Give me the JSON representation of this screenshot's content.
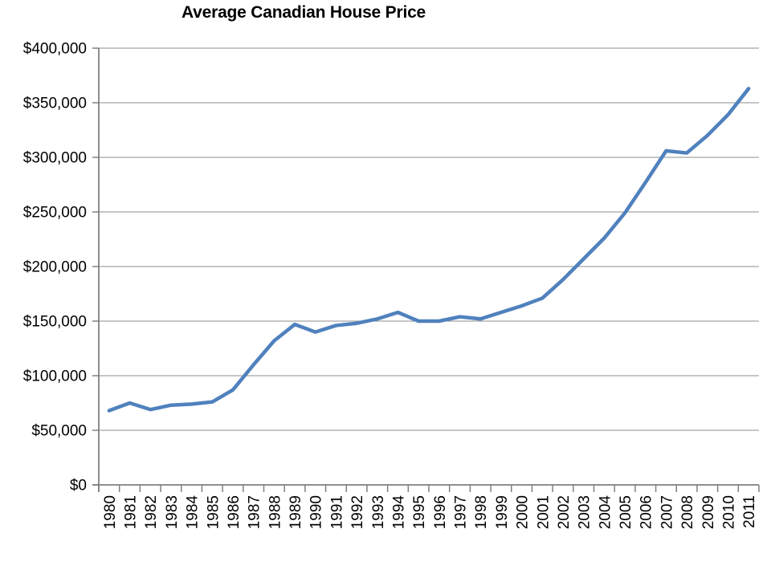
{
  "chart_data": {
    "type": "line",
    "title": "Average Canadian House Price",
    "x": [
      "1980",
      "1981",
      "1982",
      "1983",
      "1984",
      "1985",
      "1986",
      "1987",
      "1988",
      "1989",
      "1990",
      "1991",
      "1992",
      "1993",
      "1994",
      "1995",
      "1996",
      "1997",
      "1998",
      "1999",
      "2000",
      "2001",
      "2002",
      "2003",
      "2004",
      "2005",
      "2006",
      "2007",
      "2008",
      "2009",
      "2010",
      "2011"
    ],
    "series": [
      {
        "name": "Average Canadian House Price",
        "values": [
          68000,
          75000,
          69000,
          73000,
          74000,
          76000,
          87000,
          110000,
          132000,
          147000,
          140000,
          146000,
          148000,
          152000,
          158000,
          150000,
          150000,
          154000,
          152000,
          158000,
          164000,
          171000,
          188000,
          207000,
          226000,
          249000,
          277000,
          306000,
          304000,
          320000,
          339000,
          363000
        ]
      }
    ],
    "xlabel": "",
    "ylabel": "",
    "ylim": [
      0,
      400000
    ],
    "ytick_step": 50000,
    "ytick_labels": [
      "$0",
      "$50,000",
      "$100,000",
      "$150,000",
      "$200,000",
      "$250,000",
      "$300,000",
      "$350,000",
      "$400,000"
    ],
    "xtick_rotation": -90,
    "grid": "horizontal",
    "legend": "none",
    "colors": {
      "line": "#4F81BD",
      "gridline": "#8C8C8C",
      "axis": "#808080",
      "text": "#000000",
      "background": "#FFFFFF"
    }
  }
}
